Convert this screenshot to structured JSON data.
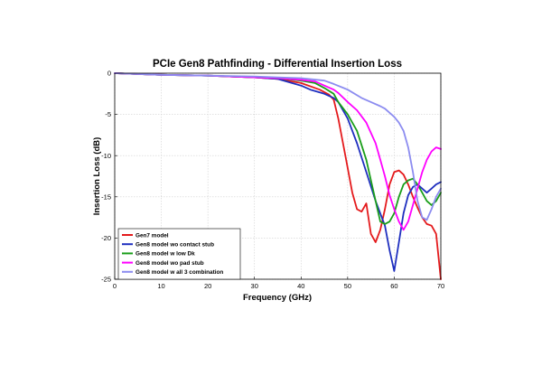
{
  "chart_data": {
    "type": "line",
    "title": "PCIe Gen8 Pathfinding - Differential Insertion Loss",
    "xlabel": "Frequency (GHz)",
    "ylabel": "Insertion Loss (dB)",
    "xlim": [
      0,
      70
    ],
    "ylim": [
      -25,
      0
    ],
    "xticks": [
      0,
      10,
      20,
      30,
      40,
      50,
      60,
      70
    ],
    "yticks": [
      0,
      -5,
      -10,
      -15,
      -20,
      -25
    ],
    "grid": true,
    "legend_position": "bottom-left",
    "series": [
      {
        "name": "Gen7 model",
        "color": "#e41a1c",
        "x": [
          0,
          10,
          20,
          30,
          35,
          40,
          44,
          46,
          47,
          48,
          49,
          50,
          51,
          52,
          53,
          54,
          55,
          56,
          57,
          58,
          59,
          60,
          61,
          62,
          63,
          64,
          65,
          66,
          67,
          68,
          69,
          70
        ],
        "y": [
          0,
          -0.2,
          -0.3,
          -0.5,
          -0.7,
          -1.2,
          -2.0,
          -2.6,
          -3.2,
          -5.5,
          -8.5,
          -11.5,
          -14.5,
          -16.5,
          -16.8,
          -15.8,
          -19.5,
          -20.5,
          -19.0,
          -16.5,
          -13.5,
          -12.0,
          -11.8,
          -12.3,
          -13.5,
          -15.0,
          -16.3,
          -17.5,
          -18.3,
          -18.5,
          -19.5,
          -25.0
        ]
      },
      {
        "name": "Gen8 model wo contact stub",
        "color": "#1f2fbf",
        "x": [
          0,
          10,
          20,
          30,
          35,
          40,
          42,
          45,
          47,
          48,
          50,
          52,
          54,
          56,
          58,
          59,
          60,
          61,
          62,
          63,
          64,
          65,
          66,
          67,
          68,
          69,
          70
        ],
        "y": [
          0,
          -0.2,
          -0.3,
          -0.5,
          -0.7,
          -1.5,
          -2.0,
          -2.5,
          -3.0,
          -3.5,
          -5.5,
          -8.5,
          -12.0,
          -15.5,
          -18.5,
          -21.5,
          -24.0,
          -20.5,
          -17.0,
          -14.8,
          -13.8,
          -13.5,
          -14.0,
          -14.5,
          -14.0,
          -13.5,
          -13.2
        ]
      },
      {
        "name": "Gen8 model w low Dk",
        "color": "#1a9e1a",
        "x": [
          0,
          10,
          20,
          30,
          35,
          40,
          43,
          45,
          47,
          48,
          50,
          52,
          54,
          56,
          57,
          58,
          59,
          60,
          61,
          62,
          63,
          64,
          65,
          66,
          67,
          68,
          69,
          70
        ],
        "y": [
          0,
          -0.2,
          -0.3,
          -0.5,
          -0.6,
          -0.9,
          -1.2,
          -1.8,
          -2.5,
          -3.5,
          -5.0,
          -7.0,
          -10.5,
          -15.5,
          -18.0,
          -18.3,
          -18.0,
          -17.0,
          -15.0,
          -13.5,
          -13.0,
          -12.8,
          -13.5,
          -14.5,
          -15.5,
          -16.0,
          -15.5,
          -14.5
        ]
      },
      {
        "name": "Gen8 model wo pad stub",
        "color": "#ff00ff",
        "x": [
          0,
          10,
          20,
          30,
          35,
          40,
          43,
          45,
          47,
          48,
          50,
          52,
          54,
          56,
          57,
          58,
          59,
          60,
          61,
          62,
          63,
          64,
          65,
          66,
          67,
          68,
          69,
          70
        ],
        "y": [
          0,
          -0.2,
          -0.3,
          -0.5,
          -0.6,
          -0.8,
          -1.0,
          -1.5,
          -2.0,
          -2.4,
          -3.5,
          -4.5,
          -6.0,
          -8.5,
          -10.5,
          -12.5,
          -14.8,
          -16.5,
          -18.0,
          -19.0,
          -18.0,
          -16.0,
          -14.0,
          -12.0,
          -10.5,
          -9.5,
          -9.0,
          -9.2
        ]
      },
      {
        "name": "Gen8 model w all 3 combination",
        "color": "#8c8cf0",
        "x": [
          0,
          10,
          20,
          30,
          35,
          40,
          45,
          47,
          50,
          53,
          55,
          57,
          58,
          59,
          60,
          61,
          62,
          63,
          64,
          65,
          66,
          67,
          68,
          69,
          70
        ],
        "y": [
          0,
          -0.2,
          -0.3,
          -0.4,
          -0.5,
          -0.6,
          -0.9,
          -1.3,
          -2.0,
          -3.0,
          -3.5,
          -4.0,
          -4.3,
          -4.8,
          -5.3,
          -6.0,
          -7.0,
          -9.0,
          -12.0,
          -15.5,
          -17.5,
          -17.8,
          -16.5,
          -15.0,
          -14.0
        ]
      }
    ]
  }
}
